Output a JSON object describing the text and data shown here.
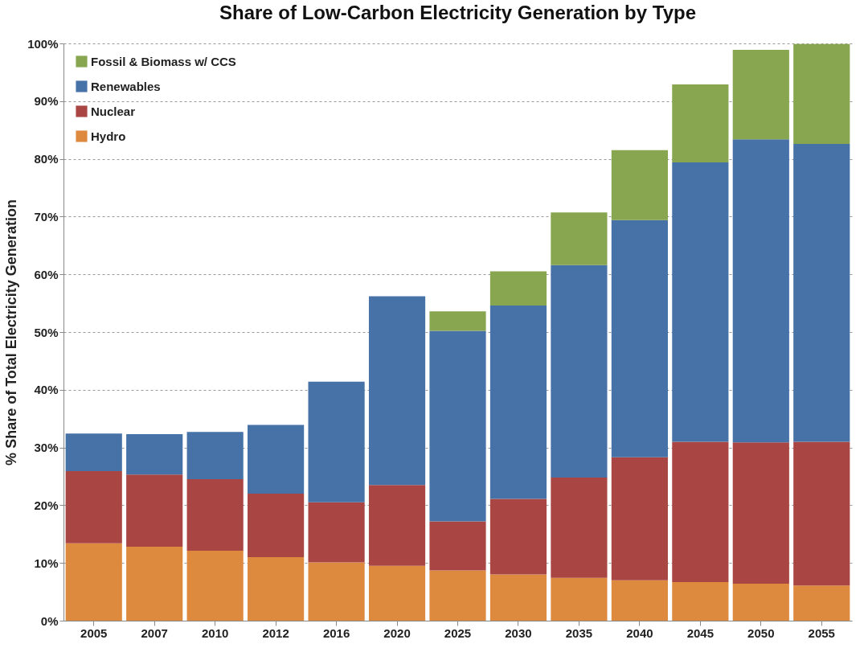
{
  "chart_data": {
    "type": "bar",
    "title": "Share of Low-Carbon Electricity Generation by Type",
    "ylabel": "% Share of Total Electricity Generation",
    "stacked": true,
    "categories": [
      "2005",
      "2007",
      "2010",
      "2012",
      "2016",
      "2020",
      "2025",
      "2030",
      "2035",
      "2040",
      "2045",
      "2050",
      "2055"
    ],
    "series": [
      {
        "name": "Hydro",
        "color": "#dd8a3f",
        "values": [
          13.4,
          12.8,
          12.1,
          11.0,
          10.1,
          9.5,
          8.7,
          8.0,
          7.4,
          7.0,
          6.7,
          6.4,
          6.1
        ]
      },
      {
        "name": "Nuclear",
        "color": "#a94643",
        "values": [
          12.5,
          12.5,
          12.4,
          11.0,
          10.4,
          14.0,
          8.5,
          13.1,
          17.4,
          21.3,
          24.3,
          24.5,
          24.9
        ]
      },
      {
        "name": "Renewables",
        "color": "#4672a7",
        "values": [
          6.5,
          7.0,
          8.2,
          11.9,
          20.9,
          32.7,
          33.0,
          33.5,
          36.8,
          41.1,
          48.4,
          52.5,
          51.6
        ]
      },
      {
        "name": "Fossil & Biomass w/ CCS",
        "color": "#87a64f",
        "values": [
          null,
          null,
          null,
          null,
          null,
          null,
          3.4,
          5.9,
          9.1,
          12.1,
          13.5,
          15.5,
          17.3
        ]
      }
    ],
    "ylim": [
      0,
      100
    ],
    "yticks": [
      {
        "value": 0,
        "label": "0%"
      },
      {
        "value": 10,
        "label": "10%"
      },
      {
        "value": 20,
        "label": "20%"
      },
      {
        "value": 30,
        "label": "30%"
      },
      {
        "value": 40,
        "label": "40%"
      },
      {
        "value": 50,
        "label": "50%"
      },
      {
        "value": 60,
        "label": "60%"
      },
      {
        "value": 70,
        "label": "70%"
      },
      {
        "value": 80,
        "label": "80%"
      },
      {
        "value": 90,
        "label": "90%"
      },
      {
        "value": 100,
        "label": "100%"
      }
    ],
    "grid": "y",
    "legend": "top left"
  }
}
